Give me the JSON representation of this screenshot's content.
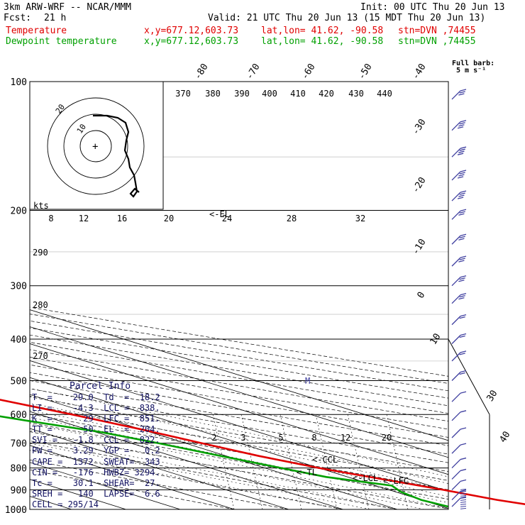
{
  "header": {
    "model": "3km ARW-WRF -- NCAR/MMM",
    "init": "Init: 00 UTC Thu 20 Jun 13",
    "fcst_label": "Fcst:",
    "fcst_value": "21 h",
    "valid": "Valid: 21 UTC Thu 20 Jun 13 (15 MDT Thu 20 Jun 13)",
    "temp_label": "Temperature",
    "dew_label": "Dewpoint temperature",
    "xy": "x,y=677.12,603.73",
    "latlon": "lat,lon= 41.62, -90.58",
    "stn": "stn=DVN ,74455"
  },
  "barb_legend": {
    "title": "Full barb:",
    "value": "5 m s⁻¹"
  },
  "colors": {
    "temperature": "#e00000",
    "dewpoint": "#00a000",
    "barbs": "#4040a0",
    "grid": "#000000"
  },
  "chart_data": {
    "type": "line",
    "title": "Skew-T log-P sounding",
    "y_axis": {
      "scale": "log",
      "unit": "hPa",
      "ticks": [
        100,
        200,
        300,
        400,
        500,
        600,
        700,
        800,
        900,
        1000
      ]
    },
    "isotherm_labels": [
      "-80",
      "-70",
      "-60",
      "-50",
      "-40",
      "-30",
      "-20",
      "-10",
      "0",
      "10",
      "30",
      "40"
    ],
    "mixing_ratio_labels": [
      "2",
      "3",
      "5",
      "8",
      "12",
      "20"
    ],
    "hodograph": {
      "theta_labels": [
        "370",
        "380",
        "390",
        "400",
        "410",
        "420",
        "430",
        "440"
      ],
      "speed_labels": [
        "8",
        "12",
        "16",
        "20",
        "24",
        "28",
        "32"
      ],
      "unit_label": "kts",
      "theta_left_labels": [
        "290",
        "280",
        "270"
      ]
    },
    "annotations": {
      "tl": "<-TL",
      "el": "<-EL",
      "lcl": "<-LCL",
      "lfc": "<-LFC",
      "m": "M",
      "ccl": "<-CCL"
    },
    "series": [
      {
        "name": "Temperature",
        "points": [
          [
            100,
            -56
          ],
          [
            110,
            -55
          ],
          [
            130,
            -56
          ],
          [
            150,
            -57
          ],
          [
            170,
            -60
          ],
          [
            190,
            -63
          ],
          [
            200,
            -64
          ],
          [
            220,
            -63
          ],
          [
            250,
            -58
          ],
          [
            300,
            -48
          ],
          [
            350,
            -38
          ],
          [
            400,
            -29
          ],
          [
            450,
            -21
          ],
          [
            500,
            -15
          ],
          [
            550,
            -9
          ],
          [
            600,
            -4
          ],
          [
            650,
            0
          ],
          [
            700,
            3
          ],
          [
            750,
            6
          ],
          [
            800,
            10
          ],
          [
            850,
            15
          ],
          [
            900,
            20
          ],
          [
            950,
            24
          ],
          [
            985,
            28
          ]
        ]
      },
      {
        "name": "Dewpoint temperature",
        "points": [
          [
            100,
            -90
          ],
          [
            120,
            -96
          ],
          [
            140,
            -94
          ],
          [
            170,
            -93
          ],
          [
            200,
            -92
          ],
          [
            230,
            -88
          ],
          [
            300,
            -77
          ],
          [
            350,
            -69
          ],
          [
            380,
            -58
          ],
          [
            420,
            -44
          ],
          [
            460,
            -28
          ],
          [
            500,
            -24
          ],
          [
            540,
            -22
          ],
          [
            590,
            -21
          ],
          [
            620,
            -16
          ],
          [
            660,
            -9
          ],
          [
            700,
            -5
          ],
          [
            750,
            -1
          ],
          [
            800,
            3
          ],
          [
            840,
            6
          ],
          [
            880,
            13
          ],
          [
            910,
            11
          ],
          [
            950,
            10
          ],
          [
            985,
            11
          ]
        ]
      }
    ],
    "winds": [
      {
        "p": 110,
        "spd": 30,
        "dir": 265
      },
      {
        "p": 130,
        "spd": 35,
        "dir": 265
      },
      {
        "p": 150,
        "spd": 35,
        "dir": 265
      },
      {
        "p": 170,
        "spd": 35,
        "dir": 265
      },
      {
        "p": 190,
        "spd": 35,
        "dir": 265
      },
      {
        "p": 210,
        "spd": 30,
        "dir": 265
      },
      {
        "p": 240,
        "spd": 30,
        "dir": 265
      },
      {
        "p": 270,
        "spd": 30,
        "dir": 265
      },
      {
        "p": 300,
        "spd": 25,
        "dir": 265
      },
      {
        "p": 330,
        "spd": 25,
        "dir": 270
      },
      {
        "p": 370,
        "spd": 20,
        "dir": 265
      },
      {
        "p": 410,
        "spd": 15,
        "dir": 265
      },
      {
        "p": 450,
        "spd": 15,
        "dir": 265
      },
      {
        "p": 500,
        "spd": 15,
        "dir": 265
      },
      {
        "p": 560,
        "spd": 10,
        "dir": 255
      },
      {
        "p": 620,
        "spd": 10,
        "dir": 250
      },
      {
        "p": 680,
        "spd": 10,
        "dir": 240
      },
      {
        "p": 740,
        "spd": 10,
        "dir": 230
      },
      {
        "p": 800,
        "spd": 10,
        "dir": 220
      },
      {
        "p": 850,
        "spd": 10,
        "dir": 210
      },
      {
        "p": 900,
        "spd": 5,
        "dir": 200
      },
      {
        "p": 950,
        "spd": 5,
        "dir": 190
      },
      {
        "p": 985,
        "spd": 5,
        "dir": 180
      }
    ]
  },
  "parcel": {
    "title": "Parcel Info",
    "rows": [
      "T  =    29.0  Td  =  18.2",
      "LI =    -4.3  LCL =  838.",
      "K  =      29  LFC =  851.",
      "TT =      50  EL  =  204.",
      "SVI =   -1.8  CCL =  822.",
      "PW =    3.29  YGP =   0.2",
      "CAPE =  1372  SWEAT=  343",
      "CIN =   -176  HWBZ= 3294.",
      "Tc =    30.1  SHEAR=  27.",
      "SREH =   140  LAPSE=  6.6",
      "CELL = 295/14"
    ]
  }
}
